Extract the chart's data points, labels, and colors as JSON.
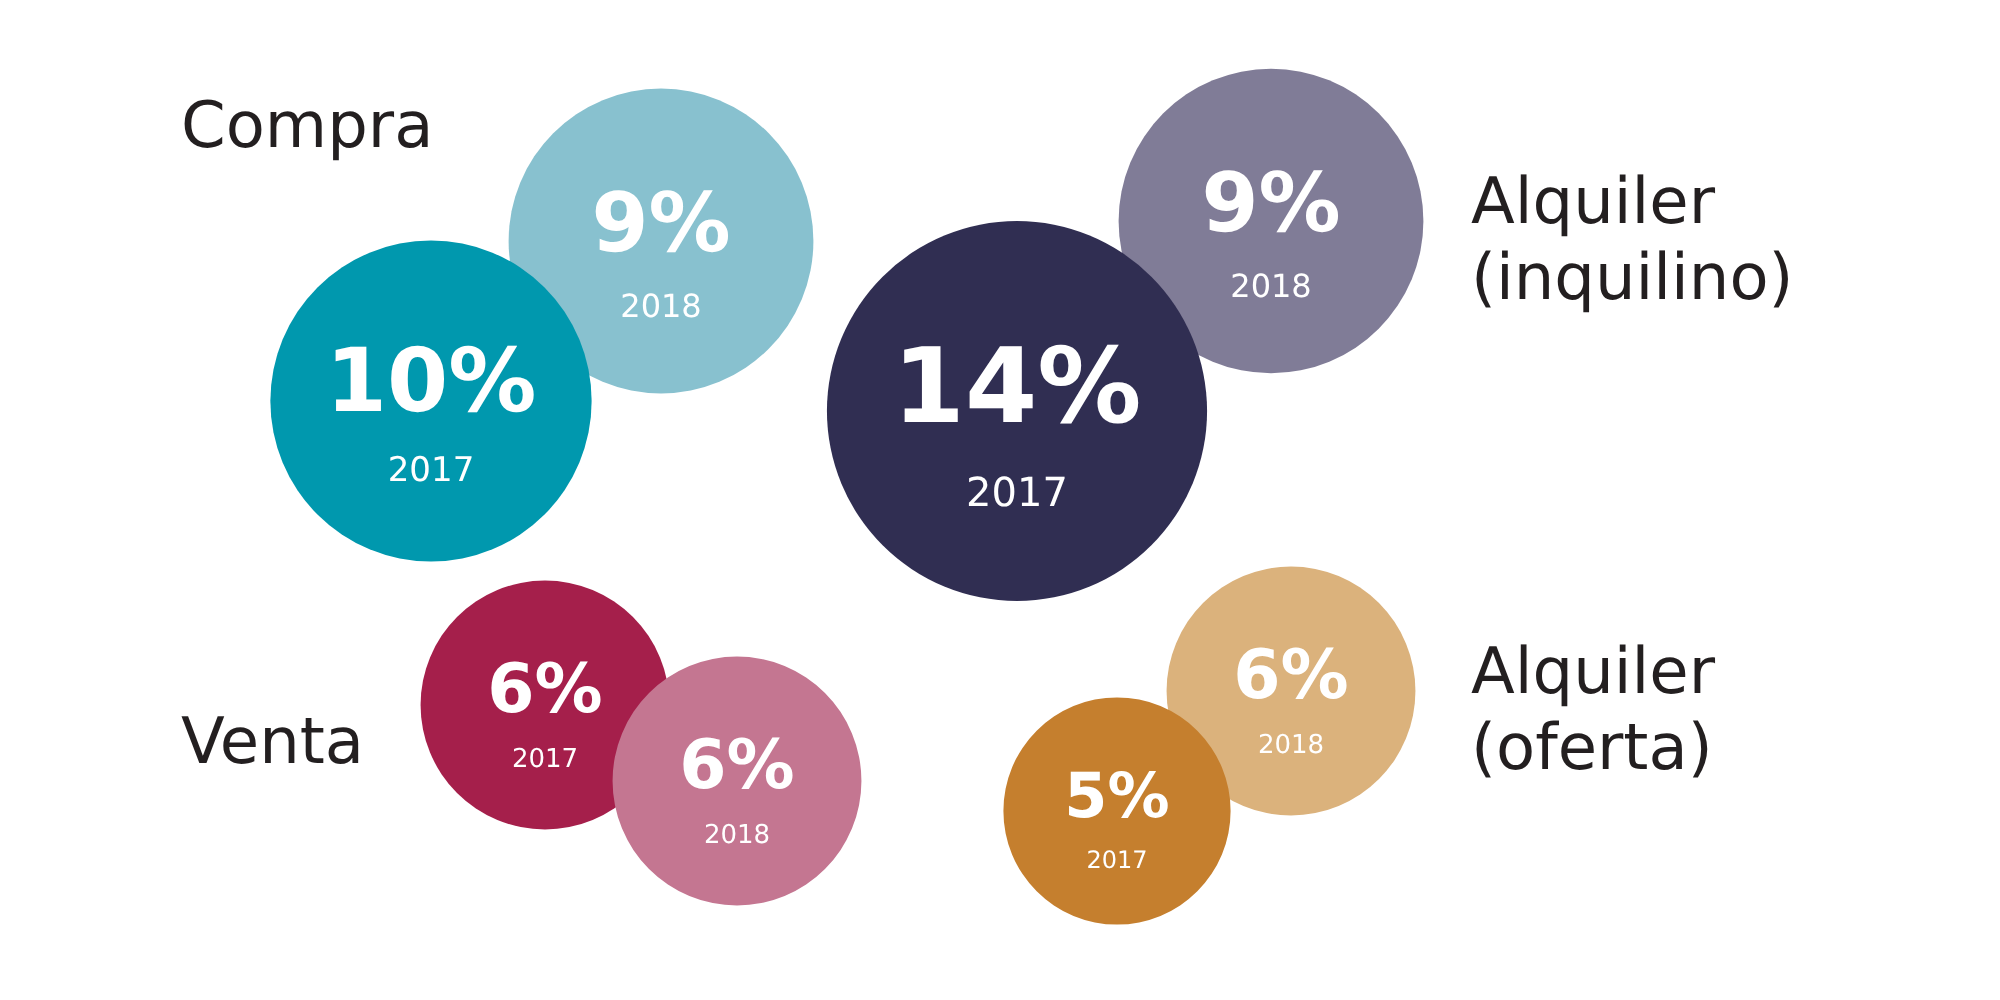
{
  "chart_data": {
    "type": "other",
    "categories": [
      "Compra",
      "Alquiler (inquilino)",
      "Venta",
      "Alquiler (oferta)"
    ],
    "series": [
      {
        "name": "2017",
        "values": [
          10,
          14,
          6,
          5
        ],
        "value_labels": [
          "10%",
          "14%",
          "6%",
          "5%"
        ],
        "colors": [
          "#0098ae",
          "#302e52",
          "#a51f4b",
          "#c57f2e"
        ]
      },
      {
        "name": "2018",
        "values": [
          9,
          9,
          6,
          6
        ],
        "value_labels": [
          "9%",
          "9%",
          "6%",
          "6%"
        ],
        "colors": [
          "#88c1cf",
          "#807c97",
          "#c47691",
          "#dbb27c"
        ]
      }
    ]
  }
}
